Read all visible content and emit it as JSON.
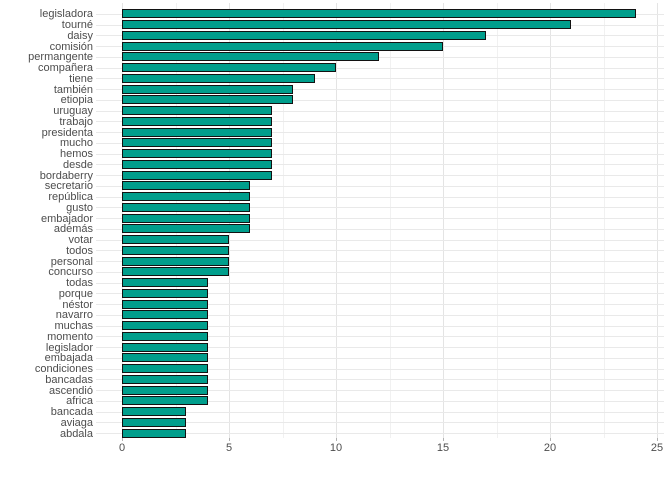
{
  "chart_data": {
    "type": "bar",
    "orientation": "horizontal",
    "title": "",
    "xlabel": "",
    "ylabel": "",
    "categories": [
      "legisladora",
      "tourné",
      "daisy",
      "comisión",
      "permangente",
      "compañera",
      "tiene",
      "también",
      "etiopia",
      "uruguay",
      "trabajo",
      "presidenta",
      "mucho",
      "hemos",
      "desde",
      "bordaberry",
      "secretario",
      "república",
      "gusto",
      "embajador",
      "además",
      "votar",
      "todos",
      "personal",
      "concurso",
      "todas",
      "porque",
      "néstor",
      "navarro",
      "muchas",
      "momento",
      "legislador",
      "embajada",
      "condiciones",
      "bancadas",
      "ascendió",
      "africa",
      "bancada",
      "aviaga",
      "abdala"
    ],
    "values": [
      24,
      21,
      17,
      15,
      12,
      10,
      9,
      8,
      8,
      7,
      7,
      7,
      7,
      7,
      7,
      7,
      6,
      6,
      6,
      6,
      6,
      5,
      5,
      5,
      5,
      4,
      4,
      4,
      4,
      4,
      4,
      4,
      4,
      4,
      4,
      4,
      4,
      3,
      3,
      3
    ],
    "xlim": [
      0,
      25
    ],
    "x_tick_values": [
      0,
      5,
      10,
      15,
      20,
      25
    ],
    "x_tick_labels": [
      "0",
      "5",
      "10",
      "15",
      "20",
      "25"
    ],
    "x_minor_tick_values": [
      2.5,
      7.5,
      12.5,
      17.5,
      22.5
    ],
    "grid": "on",
    "legend": "none",
    "colors": {
      "bar_fill": "#009E8C",
      "bar_stroke": "#121212",
      "grid_major": "#e4e4e4",
      "grid_minor": "#f1f1f1",
      "grid_row": "#e9e9e9",
      "axis_text": "#4d4d4d",
      "background": "#ffffff"
    }
  }
}
